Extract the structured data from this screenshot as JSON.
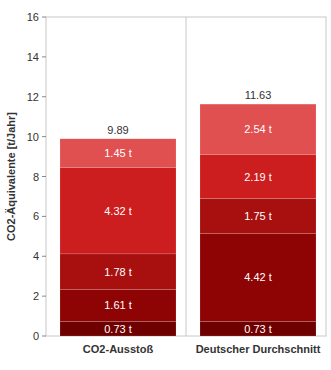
{
  "chart_data": {
    "type": "bar",
    "stacked": true,
    "data_labels": true,
    "grid": false,
    "y_label": "CO2-Äquivalente [t/Jahr]",
    "categories": [
      "CO2-Ausstoß",
      "Deutscher Durchschnitt"
    ],
    "ylim": [
      0,
      16
    ],
    "yticks": [
      0,
      2,
      4,
      6,
      8,
      10,
      12,
      14,
      16
    ],
    "totals": [
      9.89,
      11.63
    ],
    "series": [
      {
        "color": "#6e0000",
        "values": [
          0.73,
          0.73
        ],
        "value_labels": [
          "0.73 t",
          "0.73 t"
        ]
      },
      {
        "color": "#8e0404",
        "values": [
          1.61,
          4.42
        ],
        "value_labels": [
          "1.61 t",
          "4.42 t"
        ]
      },
      {
        "color": "#a81010",
        "values": [
          1.78,
          1.75
        ],
        "value_labels": [
          "1.78 t",
          "1.75 t"
        ]
      },
      {
        "color": "#cc1e1e",
        "values": [
          4.32,
          2.19
        ],
        "value_labels": [
          "4.32 t",
          "2.19 t"
        ]
      },
      {
        "color": "#e05050",
        "values": [
          1.45,
          2.54
        ],
        "value_labels": [
          "1.45 t",
          "2.54 t"
        ]
      }
    ]
  }
}
